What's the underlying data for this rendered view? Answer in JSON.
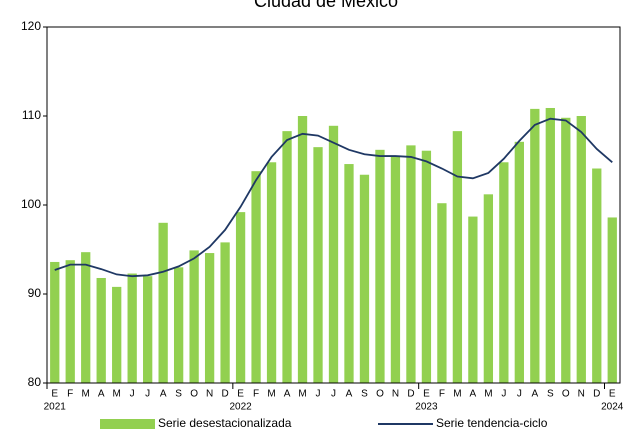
{
  "chart_data": {
    "type": "bar-line",
    "title": "Ciudad de México",
    "categories": [
      "E",
      "F",
      "M",
      "A",
      "M",
      "J",
      "J",
      "A",
      "S",
      "O",
      "N",
      "D",
      "E",
      "F",
      "M",
      "A",
      "M",
      "J",
      "J",
      "A",
      "S",
      "O",
      "N",
      "D",
      "E",
      "F",
      "M",
      "A",
      "M",
      "J",
      "J",
      "A",
      "S",
      "O",
      "N",
      "D",
      "E"
    ],
    "years": [
      "2021",
      null,
      null,
      null,
      null,
      null,
      null,
      null,
      null,
      null,
      null,
      null,
      "2022",
      null,
      null,
      null,
      null,
      null,
      null,
      null,
      null,
      null,
      null,
      null,
      "2023",
      null,
      null,
      null,
      null,
      null,
      null,
      null,
      null,
      null,
      null,
      null,
      "2024"
    ],
    "series": [
      {
        "name": "Serie desestacionalizada",
        "type": "bar",
        "color": "#92d050",
        "values": [
          93.6,
          93.8,
          94.7,
          91.8,
          90.8,
          92.3,
          92.0,
          98.0,
          93.0,
          94.9,
          94.6,
          95.8,
          99.2,
          103.8,
          104.8,
          108.3,
          110.0,
          106.5,
          108.9,
          104.6,
          103.4,
          106.2,
          105.4,
          106.7,
          106.1,
          100.2,
          108.3,
          98.7,
          101.2,
          104.8,
          107.1,
          110.8,
          110.9,
          109.8,
          110.0,
          104.1,
          98.6
        ]
      },
      {
        "name": "Serie tendencia-ciclo",
        "type": "line",
        "color": "#1f3864",
        "values": [
          92.7,
          93.3,
          93.3,
          92.8,
          92.2,
          92.0,
          92.1,
          92.5,
          93.1,
          94.0,
          95.3,
          97.2,
          99.8,
          102.8,
          105.4,
          107.3,
          108.0,
          107.8,
          107.0,
          106.2,
          105.7,
          105.5,
          105.5,
          105.4,
          104.9,
          104.1,
          103.2,
          103.0,
          103.6,
          105.2,
          107.2,
          109.0,
          109.7,
          109.5,
          108.2,
          106.3,
          104.8
        ]
      }
    ],
    "ylim": [
      80,
      120
    ],
    "yticks": [
      80,
      90,
      100,
      110,
      120
    ],
    "legend": "bottom"
  }
}
